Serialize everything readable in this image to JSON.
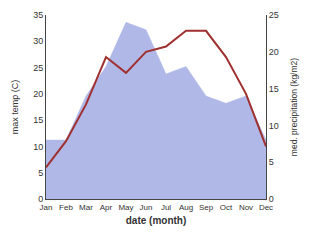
{
  "chart_data": {
    "type": "line",
    "categories": [
      "Jan",
      "Feb",
      "Mar",
      "Apr",
      "May",
      "Jun",
      "Jul",
      "Aug",
      "Sep",
      "Oct",
      "Nov",
      "Dec"
    ],
    "xlabel": "date (month)",
    "ylabel": "max temp (C)",
    "y2label": "med. precipitation (kg/m2)",
    "series": [
      {
        "type": "area",
        "color": "#b0b8e8",
        "axis": "y2",
        "values": [
          8,
          8,
          14,
          18,
          24,
          23,
          17,
          18,
          14,
          13,
          14,
          8
        ]
      },
      {
        "type": "line",
        "color": "#a03030",
        "values": [
          6,
          11,
          18,
          27,
          24,
          28,
          29,
          32,
          32,
          27,
          20,
          10
        ]
      }
    ],
    "ylim": [
      0,
      35
    ],
    "yticks": [
      0,
      5,
      10,
      15,
      20,
      25,
      30,
      35
    ],
    "y2lim": [
      0,
      25
    ],
    "y2ticks": [
      0,
      5,
      10,
      15,
      20,
      25
    ],
    "grid": false
  }
}
